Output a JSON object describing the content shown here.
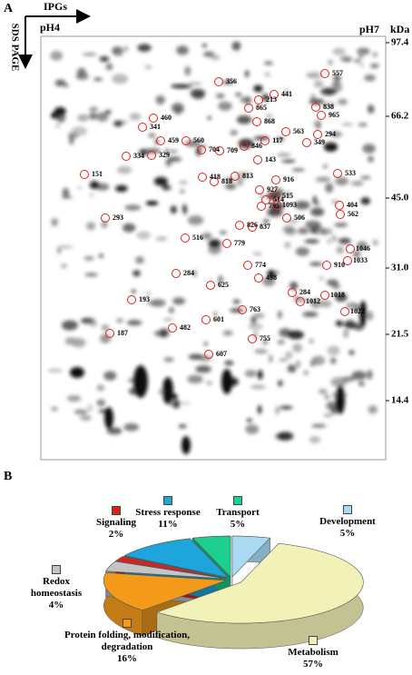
{
  "panel_a": {
    "panel_label": "A",
    "ipg_label": "IPGs",
    "sds_label": "SDS PAGE",
    "ph_left": "pH4",
    "ph_right": "pH7",
    "unit": "kDa",
    "mw_markers": [
      "97.4",
      "66.2",
      "45.0",
      "31.0",
      "21.5",
      "14.4"
    ],
    "spot_labels": [
      "356",
      "557",
      "441",
      "213",
      "865",
      "838",
      "965",
      "460",
      "868",
      "341",
      "563",
      "294",
      "459",
      "560",
      "117",
      "349",
      "846",
      "704",
      "709",
      "334",
      "329",
      "143",
      "151",
      "813",
      "818",
      "418",
      "916",
      "533",
      "927",
      "515",
      "514",
      "795",
      "1093",
      "404",
      "293",
      "562",
      "506",
      "826",
      "837",
      "516",
      "779",
      "1046",
      "1033",
      "910",
      "774",
      "498",
      "284",
      "625",
      "193",
      "284",
      "1018",
      "1012",
      "763",
      "1022",
      "601",
      "482",
      "755",
      "187",
      "607"
    ]
  },
  "chart_data": {
    "type": "pie",
    "panel_label": "B",
    "categories": [
      "Protein folding, modification, degradation",
      "Redox homeostasis",
      "Signaling",
      "Stress response",
      "Transport",
      "Development",
      "Metabolism"
    ],
    "values": [
      16,
      4,
      2,
      11,
      5,
      5,
      57
    ],
    "value_labels": [
      "16%",
      "4%",
      "2%",
      "11%",
      "5%",
      "5%",
      "57%"
    ],
    "colors": [
      "#f39a1a",
      "#c4c4c4",
      "#d8231c",
      "#1ea6dc",
      "#1ccf8c",
      "#a9daf4",
      "#f2f2b8"
    ]
  }
}
